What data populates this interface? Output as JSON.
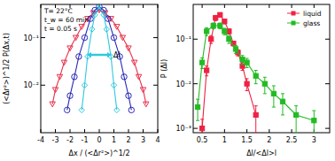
{
  "chart_data": [
    {
      "type": "line",
      "y_label": "(<Δr²>)^1/2 P(Δx,t)",
      "x_label": "Δx / (<Δr²>)^1/2",
      "annotations": [
        "T= 22°C",
        "t_w = 60 min",
        "t = 0.05 s",
        "Δl"
      ],
      "log": "y",
      "xlim": [
        -4,
        4
      ],
      "ylim": [
        0.001,
        0.5
      ],
      "xticks": [
        -4,
        -3,
        -2,
        -1,
        0,
        1,
        2,
        3,
        4
      ],
      "yticks": [
        {
          "value": 0.01,
          "label": "10⁻²"
        },
        {
          "value": 0.1,
          "label": "10⁻¹"
        }
      ],
      "series": [
        {
          "color": "#e8304a",
          "marker": "triangle-down",
          "line_style": "solid",
          "x": [
            -3.2,
            -3,
            -2.7,
            -2.4,
            -2,
            -1.6,
            -1.2,
            -0.8,
            -0.4,
            0,
            0.4,
            0.8,
            1.2,
            1.6,
            2,
            2.4,
            2.7,
            3,
            3.2
          ],
          "values": [
            0.004,
            0.008,
            0.015,
            0.03,
            0.06,
            0.1,
            0.17,
            0.25,
            0.33,
            0.38,
            0.33,
            0.25,
            0.17,
            0.1,
            0.06,
            0.03,
            0.015,
            0.008,
            0.004
          ]
        },
        {
          "color": "#2828b8",
          "marker": "circle",
          "line_style": "solid",
          "x": [
            -2.2,
            -2,
            -1.7,
            -1.4,
            -1,
            -0.6,
            -0.3,
            0,
            0.3,
            0.6,
            1,
            1.4,
            1.7,
            2,
            2.2
          ],
          "values": [
            0.003,
            0.006,
            0.015,
            0.04,
            0.1,
            0.25,
            0.38,
            0.45,
            0.38,
            0.25,
            0.1,
            0.04,
            0.015,
            0.006,
            0.003
          ]
        },
        {
          "color": "#30c8e0",
          "marker": "diamond",
          "line_style": "solid",
          "x": [
            -1.2,
            -1,
            -0.8,
            -0.5,
            -0.3,
            0,
            0.3,
            0.5,
            0.8,
            1,
            1.2
          ],
          "values": [
            0.003,
            0.01,
            0.04,
            0.15,
            0.3,
            0.45,
            0.3,
            0.15,
            0.04,
            0.01,
            0.003
          ]
        }
      ]
    },
    {
      "type": "scatter",
      "y_label": "P (Δl)",
      "x_label": "Δl/<Δl>l",
      "log": "y",
      "legend": "upper right",
      "xlim": [
        0.3,
        3.35
      ],
      "ylim": [
        0.0008,
        0.6
      ],
      "xticks": [
        0.5,
        1,
        1.5,
        2,
        2.5,
        3
      ],
      "yticks": [
        {
          "value": 0.001,
          "label": "10⁻³"
        },
        {
          "value": 0.01,
          "label": "10⁻²"
        },
        {
          "value": 0.1,
          "label": "10⁻¹"
        }
      ],
      "series": [
        {
          "name": "liquid",
          "color": "#ee2244",
          "marker": "square",
          "line_style": "solid",
          "x": [
            0.5,
            0.6,
            0.7,
            0.8,
            0.9,
            1,
            1.1,
            1.2,
            1.3,
            1.4,
            1.5,
            1.7
          ],
          "values": [
            0.001,
            0.02,
            0.1,
            0.3,
            0.35,
            0.25,
            0.15,
            0.08,
            0.05,
            0.025,
            0.01,
            0.002
          ],
          "errors": [
            0.0006,
            0.005,
            0.02,
            0.04,
            0.04,
            0.03,
            0.02,
            0.01,
            0.008,
            0.005,
            0.003,
            0.0012
          ]
        },
        {
          "name": "glass",
          "color": "#22bb22",
          "marker": "square",
          "line_style": "solid",
          "x": [
            0.4,
            0.5,
            0.6,
            0.75,
            0.9,
            1,
            1.1,
            1.25,
            1.4,
            1.5,
            1.7,
            1.9,
            2.1,
            2.3,
            2.6,
            3
          ],
          "values": [
            0.003,
            0.03,
            0.15,
            0.2,
            0.2,
            0.15,
            0.1,
            0.06,
            0.035,
            0.03,
            0.015,
            0.01,
            0.006,
            0.004,
            0.002,
            0.0015
          ],
          "errors": [
            0.0015,
            0.008,
            0.03,
            0.03,
            0.03,
            0.025,
            0.02,
            0.012,
            0.008,
            0.007,
            0.005,
            0.004,
            0.003,
            0.002,
            0.0012,
            0.001
          ]
        }
      ]
    }
  ]
}
